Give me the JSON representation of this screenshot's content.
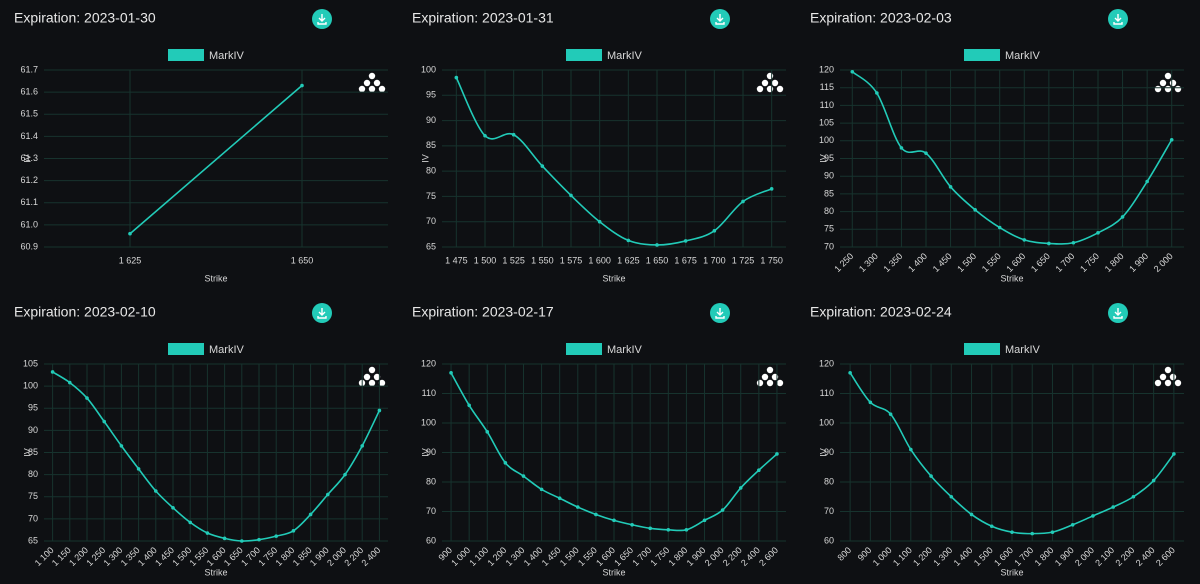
{
  "chart_data": [
    {
      "type": "line",
      "title": "Expiration: 2023-01-30",
      "x_label": "Strike",
      "y_label": "IV",
      "grid": true,
      "categories": [
        "1 625",
        "1 650"
      ],
      "series": [
        {
          "name": "MarkIV",
          "color": "#22cbb8",
          "values": [
            60.96,
            61.63
          ]
        }
      ],
      "ylim": [
        60.9,
        61.7
      ],
      "yticks": [
        60.9,
        {
          "value": 61,
          "label": "61.0"
        },
        61.1,
        61.2,
        61.3,
        61.4,
        61.5,
        61.6,
        61.7
      ]
    },
    {
      "type": "line",
      "title": "Expiration: 2023-01-31",
      "x_label": "Strike",
      "y_label": "IV",
      "grid": true,
      "categories": [
        "1 475",
        "1 500",
        "1 525",
        "1 550",
        "1 575",
        "1 600",
        "1 625",
        "1 650",
        "1 675",
        "1 700",
        "1 725",
        "1 750"
      ],
      "series": [
        {
          "name": "MarkIV",
          "color": "#22cbb8",
          "values": [
            98.5,
            87,
            87.2,
            81,
            75.2,
            70,
            66.3,
            65.4,
            66.2,
            68.2,
            74,
            76.5
          ]
        }
      ],
      "ylim": [
        65,
        100
      ],
      "yticks": [
        65,
        70,
        75,
        80,
        85,
        90,
        95,
        100
      ]
    },
    {
      "type": "line",
      "title": "Expiration: 2023-02-03",
      "x_label": "Strike",
      "y_label": "IV",
      "grid": true,
      "categories": [
        "1 250",
        "1 300",
        "1 350",
        "1 400",
        "1 450",
        "1 500",
        "1 550",
        "1 600",
        "1 650",
        "1 700",
        "1 750",
        "1 800",
        "1 900",
        "2 000"
      ],
      "series": [
        {
          "name": "MarkIV",
          "color": "#22cbb8",
          "values": [
            119.5,
            113.5,
            98,
            96.5,
            87,
            80.5,
            75.5,
            72,
            71,
            71.2,
            74,
            78.5,
            88.5,
            100.3
          ]
        }
      ],
      "ylim": [
        70,
        120
      ],
      "yticks": [
        70,
        75,
        80,
        85,
        90,
        95,
        100,
        105,
        110,
        115,
        120
      ]
    },
    {
      "type": "line",
      "title": "Expiration: 2023-02-10",
      "x_label": "Strike",
      "y_label": "IV",
      "grid": true,
      "categories": [
        "1 100",
        "1 150",
        "1 200",
        "1 250",
        "1 300",
        "1 350",
        "1 400",
        "1 450",
        "1 500",
        "1 550",
        "1 600",
        "1 650",
        "1 700",
        "1 750",
        "1 800",
        "1 850",
        "1 900",
        "2 000",
        "2 200",
        "2 400"
      ],
      "series": [
        {
          "name": "MarkIV",
          "color": "#22cbb8",
          "values": [
            103.2,
            100.8,
            97.3,
            92,
            86.5,
            81.3,
            76.3,
            72.5,
            69.2,
            66.8,
            65.6,
            65,
            65.3,
            66.1,
            67.3,
            71,
            75.5,
            80,
            86.5,
            94.5
          ]
        }
      ],
      "ylim": [
        65,
        105
      ],
      "yticks": [
        65,
        70,
        75,
        80,
        85,
        90,
        95,
        100,
        105
      ]
    },
    {
      "type": "line",
      "title": "Expiration: 2023-02-17",
      "x_label": "Strike",
      "y_label": "IV",
      "grid": true,
      "categories": [
        "900",
        "1 000",
        "1 100",
        "1 200",
        "1 300",
        "1 400",
        "1 450",
        "1 500",
        "1 550",
        "1 600",
        "1 650",
        "1 700",
        "1 750",
        "1 800",
        "1 900",
        "2 000",
        "2 200",
        "2 400",
        "2 600"
      ],
      "series": [
        {
          "name": "MarkIV",
          "color": "#22cbb8",
          "values": [
            117,
            106,
            97,
            86.5,
            82,
            77.5,
            74.5,
            71.5,
            69,
            67,
            65.5,
            64.3,
            63.8,
            63.8,
            67,
            70.5,
            78,
            84,
            89.5
          ]
        }
      ],
      "ylim": [
        60,
        120
      ],
      "yticks": [
        60,
        70,
        80,
        90,
        100,
        110,
        120
      ]
    },
    {
      "type": "line",
      "title": "Expiration: 2023-02-24",
      "x_label": "Strike",
      "y_label": "IV",
      "grid": true,
      "categories": [
        "800",
        "900",
        "1 000",
        "1 100",
        "1 200",
        "1 300",
        "1 400",
        "1 500",
        "1 600",
        "1 700",
        "1 800",
        "1 900",
        "2 000",
        "2 100",
        "2 200",
        "2 400",
        "2 600"
      ],
      "series": [
        {
          "name": "MarkIV",
          "color": "#22cbb8",
          "values": [
            117,
            107,
            103,
            91,
            82,
            75,
            69,
            65,
            63,
            62.5,
            63,
            65.5,
            68.5,
            71.5,
            75,
            80.5,
            89.5
          ]
        }
      ],
      "ylim": [
        60,
        120
      ],
      "yticks": [
        60,
        70,
        80,
        90,
        100,
        110,
        120
      ]
    }
  ]
}
